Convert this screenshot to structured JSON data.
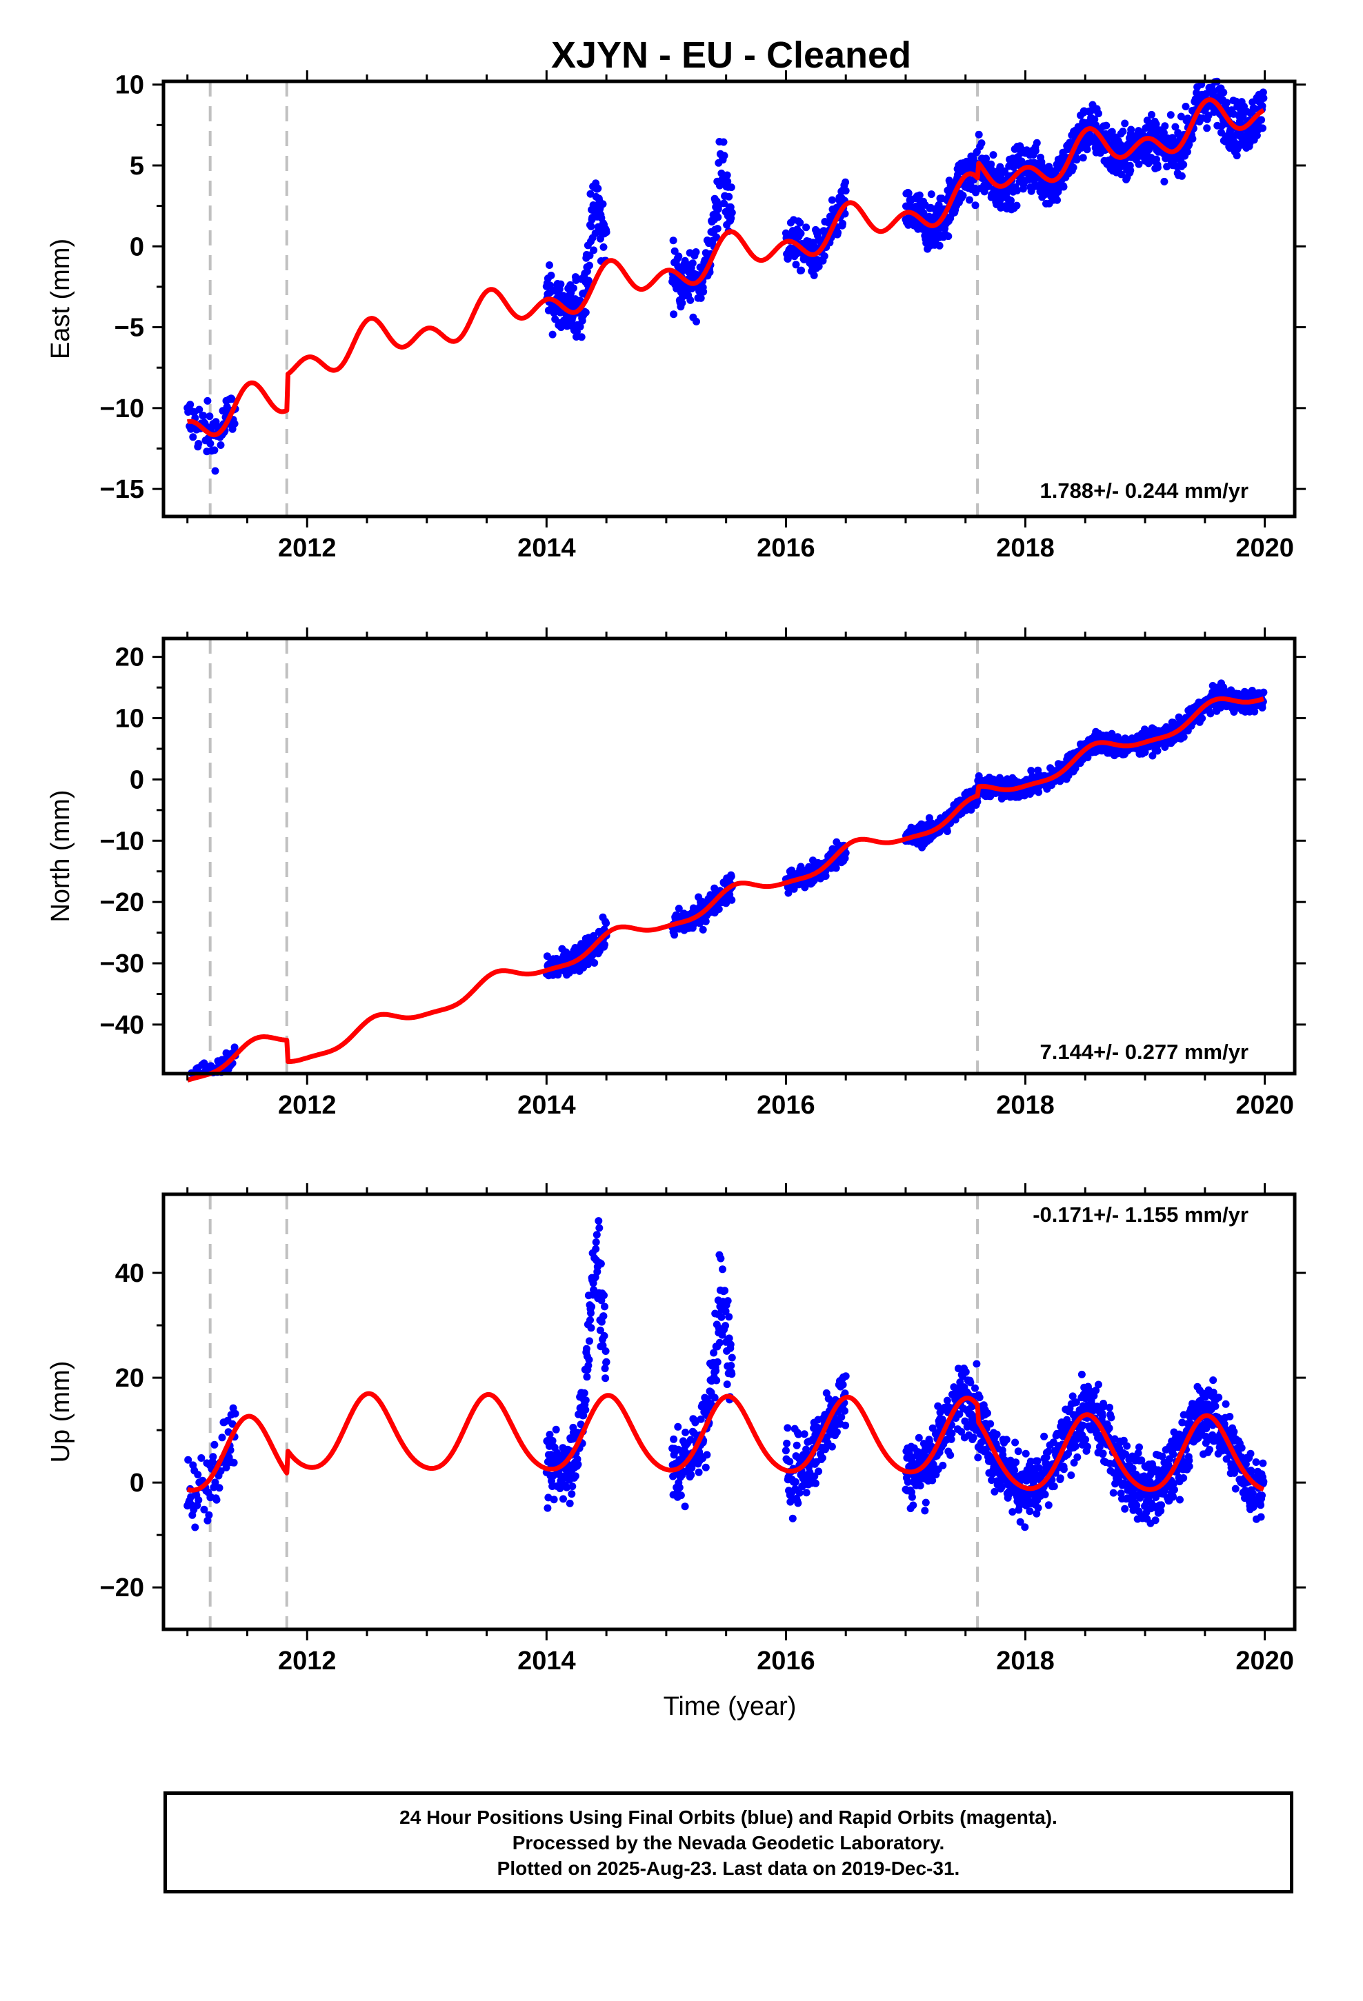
{
  "title": "XJYN  - EU - Cleaned",
  "xlabel": "Time (year)",
  "colors": {
    "data": "#0000ff",
    "model": "#ff0000",
    "breaks": "#c0c0c0",
    "axes": "#000000"
  },
  "footer": [
    "24 Hour Positions Using Final Orbits (blue) and Rapid Orbits (magenta).",
    "Processed by the Nevada Geodetic Laboratory.",
    "Plotted on 2025-Aug-23. Last data on 2019-Dec-31."
  ],
  "chart_data": [
    {
      "type": "scatter",
      "component": "East",
      "ylabel": "East (mm)",
      "rate_label": "1.788+/- 0.244 mm/yr",
      "xlim": [
        2010.8,
        2020.25
      ],
      "ylim": [
        -16.7,
        10.2
      ],
      "xticks": [
        2012,
        2014,
        2016,
        2018,
        2020
      ],
      "yticks": [
        -15,
        -10,
        -5,
        0,
        5,
        10
      ],
      "ytick_labels": [
        "−15",
        "−10",
        "−5",
        "0",
        "5",
        "10"
      ],
      "breaks": [
        2011.19,
        2011.83,
        2017.6
      ],
      "model": {
        "rate": 1.788,
        "offset_at_2015": -3.8,
        "ann_sin": -0.3,
        "ann_cos": -0.7,
        "semi_sin": 0.2,
        "semi_cos": 0.8,
        "steps": [
          {
            "year": 2011.83,
            "size": 2.2
          },
          {
            "year": 2017.6,
            "size": 1.0
          }
        ]
      },
      "segments": [
        {
          "start": 2011.0,
          "end": 2011.4,
          "n": 70,
          "spread": 1.2
        },
        {
          "start": 2014.0,
          "end": 2014.5,
          "n": 170,
          "spread": 1.3,
          "excursion": 5.5
        },
        {
          "start": 2015.05,
          "end": 2015.55,
          "n": 170,
          "spread": 1.3,
          "excursion": 4.5
        },
        {
          "start": 2016.0,
          "end": 2016.5,
          "n": 150,
          "spread": 1.0
        },
        {
          "start": 2017.0,
          "end": 2019.99,
          "n": 1100,
          "spread": 1.1
        }
      ]
    },
    {
      "type": "scatter",
      "component": "North",
      "ylabel": "North (mm)",
      "rate_label": "7.144+/- 0.277 mm/yr",
      "xlim": [
        2010.8,
        2020.25
      ],
      "ylim": [
        -48,
        23
      ],
      "xticks": [
        2012,
        2014,
        2016,
        2018,
        2020
      ],
      "yticks": [
        -40,
        -30,
        -20,
        -10,
        0,
        10,
        20
      ],
      "ytick_labels": [
        "−40",
        "−30",
        "−20",
        "−10",
        "0",
        "10",
        "20"
      ],
      "breaks": [
        2011.19,
        2011.83,
        2017.6
      ],
      "model": {
        "rate": 7.144,
        "offset_at_2015": -19.6,
        "ann_sin": -0.8,
        "ann_cos": -1.2,
        "semi_sin": 0.3,
        "semi_cos": 0.3,
        "steps": [
          {
            "year": 2011.83,
            "size": -3.5
          },
          {
            "year": 2017.6,
            "size": 1.5
          }
        ]
      },
      "segments": [
        {
          "start": 2011.0,
          "end": 2011.4,
          "n": 70,
          "spread": 1.5
        },
        {
          "start": 2014.0,
          "end": 2014.5,
          "n": 170,
          "spread": 1.6
        },
        {
          "start": 2015.05,
          "end": 2015.55,
          "n": 170,
          "spread": 1.5
        },
        {
          "start": 2016.0,
          "end": 2016.5,
          "n": 150,
          "spread": 1.5
        },
        {
          "start": 2017.0,
          "end": 2019.99,
          "n": 1100,
          "spread": 1.2
        }
      ]
    },
    {
      "type": "scatter",
      "component": "Up",
      "ylabel": "Up (mm)",
      "rate_label": "-0.171+/- 1.155 mm/yr",
      "xlim": [
        2010.8,
        2020.25
      ],
      "ylim": [
        -28,
        55
      ],
      "xticks": [
        2012,
        2014,
        2016,
        2018,
        2020
      ],
      "yticks": [
        -20,
        0,
        20,
        40
      ],
      "ytick_labels": [
        "−20",
        "0",
        "20",
        "40"
      ],
      "breaks": [
        2011.19,
        2011.83,
        2017.6
      ],
      "model": {
        "rate": -0.171,
        "offset_at_2015": 4.2,
        "ann_sin": -1.0,
        "ann_cos": -7.0,
        "semi_sin": 0.0,
        "semi_cos": 0.8,
        "steps": [
          {
            "year": 2011.83,
            "size": 4.5
          },
          {
            "year": 2017.6,
            "size": -3.0
          }
        ]
      },
      "segments": [
        {
          "start": 2011.0,
          "end": 2011.4,
          "n": 70,
          "spread": 4.5
        },
        {
          "start": 2014.0,
          "end": 2014.5,
          "n": 170,
          "spread": 5.0,
          "excursion": 38
        },
        {
          "start": 2015.05,
          "end": 2015.55,
          "n": 170,
          "spread": 5.0,
          "excursion": 22
        },
        {
          "start": 2016.0,
          "end": 2016.5,
          "n": 150,
          "spread": 5.0
        },
        {
          "start": 2017.0,
          "end": 2019.99,
          "n": 1100,
          "spread": 4.5
        }
      ]
    }
  ]
}
